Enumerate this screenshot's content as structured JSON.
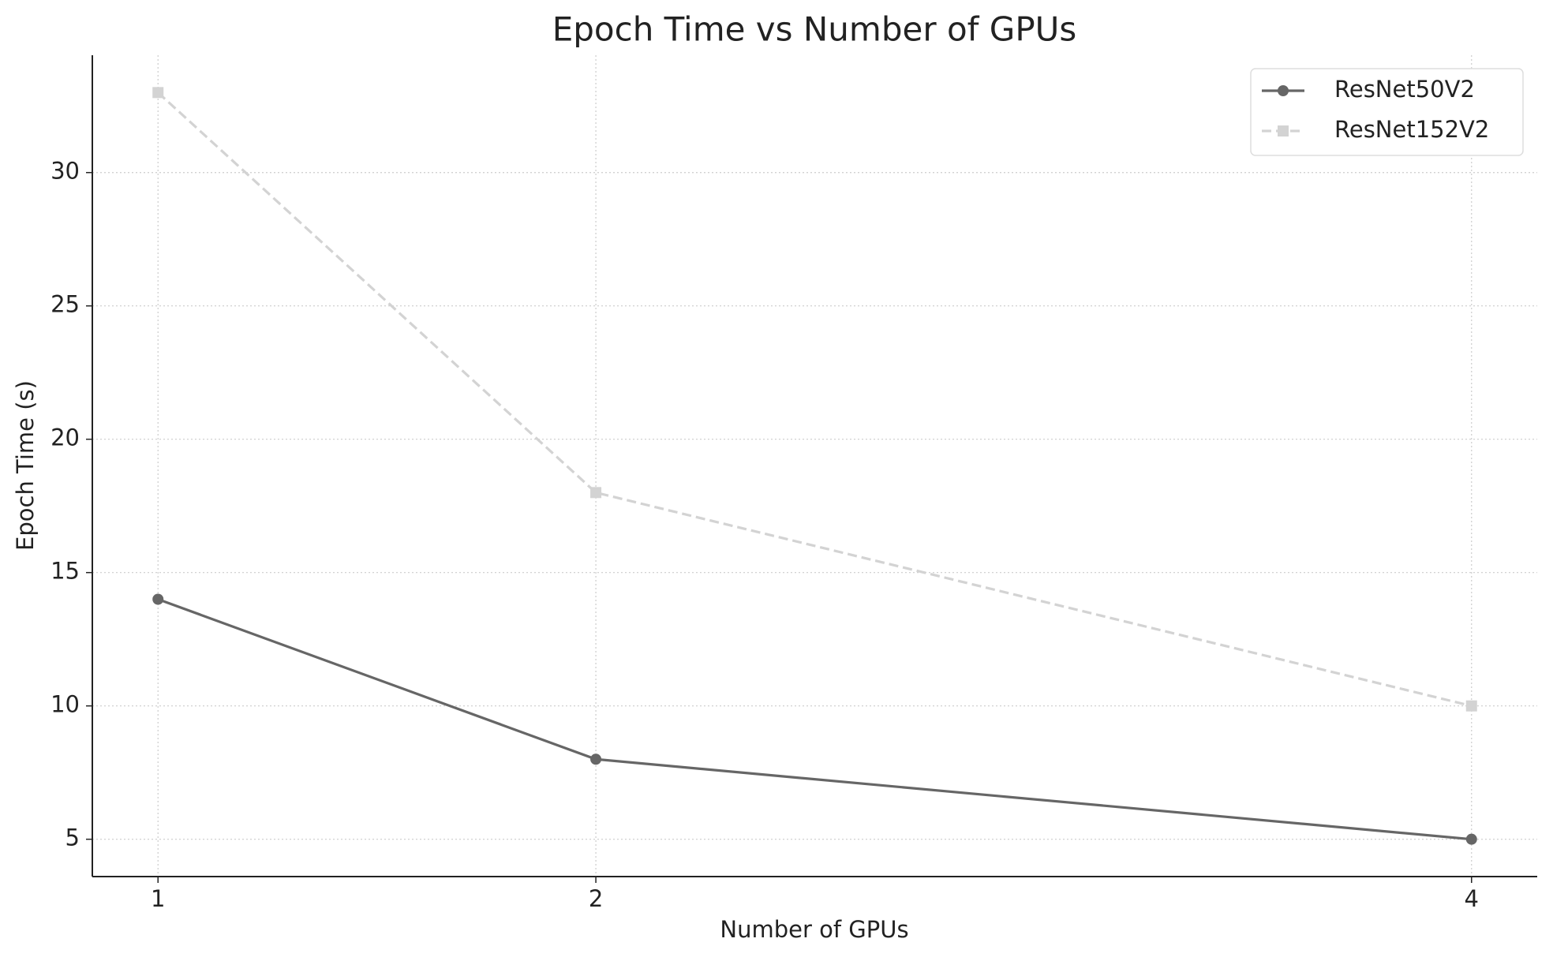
{
  "chart_data": {
    "type": "line",
    "title": "Epoch Time vs Number of GPUs",
    "x_label": "Number of GPUs",
    "y_label": "Epoch Time (s)",
    "x": [
      1,
      2,
      4
    ],
    "series": [
      {
        "name": "ResNet50V2",
        "color": "#666666",
        "linestyle": "solid",
        "marker": "circle",
        "values": [
          14,
          8,
          5
        ]
      },
      {
        "name": "ResNet152V2",
        "color": "#d3d3d3",
        "linestyle": "dashed",
        "marker": "square",
        "values": [
          33,
          18,
          10
        ]
      }
    ],
    "xlim": [
      0.85,
      4.15
    ],
    "xticks": [
      1,
      2,
      4
    ],
    "ylim": [
      3.6,
      34.4
    ],
    "yticks": [
      5,
      10,
      15,
      20,
      25,
      30
    ],
    "grid": true,
    "legend": "upper right"
  }
}
